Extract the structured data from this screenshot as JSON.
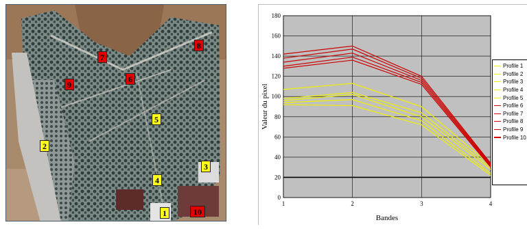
{
  "satellite_image": {
    "labels": [
      {
        "text": "1",
        "color": "yellow"
      },
      {
        "text": "2",
        "color": "yellow"
      },
      {
        "text": "3",
        "color": "yellow"
      },
      {
        "text": "4",
        "color": "yellow"
      },
      {
        "text": "5",
        "color": "yellow"
      },
      {
        "text": "6",
        "color": "red"
      },
      {
        "text": "7",
        "color": "red"
      },
      {
        "text": "8",
        "color": "red"
      },
      {
        "text": "9",
        "color": "red"
      },
      {
        "text": "10",
        "color": "red"
      }
    ]
  },
  "chart_data": {
    "type": "line",
    "title": "",
    "xlabel": "Bandes",
    "ylabel": "Valeur du pixel",
    "x": [
      1,
      2,
      3,
      4
    ],
    "xlim": [
      1,
      4
    ],
    "ylim": [
      0,
      180
    ],
    "yticks": [
      0,
      20,
      40,
      60,
      80,
      100,
      120,
      140,
      160,
      180
    ],
    "grid": true,
    "legend": "right",
    "plot_background": "#c0c0c0",
    "series": [
      {
        "name": "Profile 1",
        "color": "#f0f000",
        "values": [
          107,
          113,
          90,
          32
        ]
      },
      {
        "name": "Profile 2",
        "color": "#f0f000",
        "values": [
          98,
          104,
          84,
          30
        ]
      },
      {
        "name": "Profile 3",
        "color": "#f0f000",
        "values": [
          96,
          102,
          80,
          28
        ]
      },
      {
        "name": "Profile 4",
        "color": "#f0f000",
        "values": [
          94,
          97,
          76,
          24
        ]
      },
      {
        "name": "Profile 5",
        "color": "#f0f000",
        "values": [
          92,
          91,
          72,
          22
        ]
      },
      {
        "name": "Profile 6",
        "color": "#cc0000",
        "values": [
          142,
          150,
          120,
          34
        ]
      },
      {
        "name": "Profile 7",
        "color": "#cc0000",
        "values": [
          138,
          147,
          118,
          33
        ]
      },
      {
        "name": "Profile 8",
        "color": "#cc0000",
        "values": [
          134,
          143,
          116,
          32
        ]
      },
      {
        "name": "Profile 9",
        "color": "#cc0000",
        "values": [
          130,
          139,
          114,
          31
        ]
      },
      {
        "name": "Profile 10",
        "color": "#cc0000",
        "values": [
          128,
          136,
          112,
          30
        ]
      }
    ]
  }
}
